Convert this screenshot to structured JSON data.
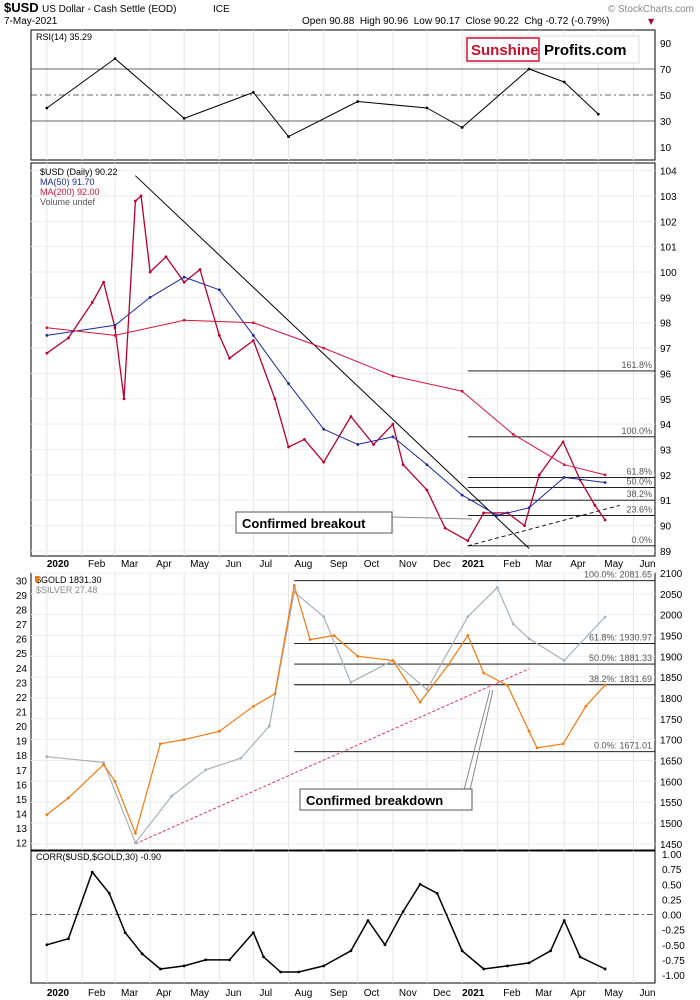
{
  "header": {
    "symbol": "$USD",
    "name": "US Dollar - Cash Settle (EOD)",
    "exchange": "ICE",
    "date": "7-May-2021",
    "watermark": "© StockCharts.com",
    "ohlc": "Open 90.88  High 90.96  Low 90.17  Close 90.22  Chg -0.72 (-0.79%)",
    "chg_marker": "▼"
  },
  "logo": {
    "part1": "Sunshine",
    "part2": "Profits.com",
    "red": "#c8102e"
  },
  "colors": {
    "usd": "#b8002e",
    "ma50": "#1a2a9a",
    "ma200": "#d2143c",
    "gold": "#f07a12",
    "silver": "#a8b0b8",
    "rsi": "#000000",
    "trendline": "#e0306a",
    "corr": "#000000"
  },
  "x_axis": {
    "labels": [
      "2020",
      "Feb",
      "Mar",
      "Apr",
      "May",
      "Jun",
      "Jul",
      "Aug",
      "Sep",
      "Oct",
      "Nov",
      "Dec",
      "2021",
      "Feb",
      "Mar",
      "Apr",
      "May",
      "Jun"
    ],
    "bold": [
      "2020",
      "2021"
    ]
  },
  "annotations": {
    "breakout": "Confirmed breakout",
    "breakdown": "Confirmed breakdown"
  },
  "chart_data": [
    {
      "type": "line",
      "panel": "rsi",
      "legend": "RSI(14) 35.29",
      "y_ticks": [
        10,
        30,
        50,
        70,
        90
      ],
      "ylim": [
        0,
        100
      ],
      "reference_lines": [
        30,
        50,
        70
      ],
      "x": [
        "2020-01",
        "2020-03",
        "2020-05",
        "2020-07",
        "2020-08",
        "2020-10",
        "2020-12",
        "2021-01",
        "2021-03",
        "2021-04",
        "2021-05"
      ],
      "values": [
        40,
        78,
        32,
        52,
        18,
        45,
        40,
        25,
        70,
        60,
        35.29
      ]
    },
    {
      "type": "line",
      "panel": "usd",
      "legend": [
        "$USD (Daily) 90.22",
        "MA(50) 91.70",
        "MA(200) 92.00",
        "Volume undef"
      ],
      "y_ticks": [
        89,
        90,
        91,
        92,
        93,
        94,
        95,
        96,
        97,
        98,
        99,
        100,
        101,
        102,
        103,
        104
      ],
      "ylim": [
        88.8,
        104.3
      ],
      "series": [
        {
          "name": "$USD (Daily)",
          "x": [
            "2020-01-01",
            "2020-01-20",
            "2020-02-10",
            "2020-02-20",
            "2020-03-01",
            "2020-03-09",
            "2020-03-19",
            "2020-03-24",
            "2020-04-01",
            "2020-04-15",
            "2020-05-01",
            "2020-05-15",
            "2020-06-01",
            "2020-06-10",
            "2020-07-01",
            "2020-07-20",
            "2020-08-01",
            "2020-08-15",
            "2020-09-01",
            "2020-09-25",
            "2020-10-15",
            "2020-11-01",
            "2020-11-10",
            "2020-12-01",
            "2020-12-17",
            "2021-01-06",
            "2021-01-20",
            "2021-02-10",
            "2021-02-25",
            "2021-03-10",
            "2021-03-31",
            "2021-04-15",
            "2021-04-28",
            "2021-05-07"
          ],
          "values": [
            96.8,
            97.4,
            98.8,
            99.6,
            97.8,
            95.0,
            102.8,
            103.0,
            100.0,
            100.6,
            99.6,
            100.1,
            97.5,
            96.6,
            97.3,
            95.0,
            93.1,
            93.4,
            92.5,
            94.3,
            93.2,
            94.0,
            92.4,
            91.4,
            89.9,
            89.4,
            90.5,
            90.5,
            90.0,
            92.0,
            93.3,
            91.8,
            90.8,
            90.22
          ]
        },
        {
          "name": "MA(50)",
          "x": [
            "2020-01-01",
            "2020-03-01",
            "2020-04-01",
            "2020-05-01",
            "2020-06-01",
            "2020-07-01",
            "2020-08-01",
            "2020-09-01",
            "2020-10-01",
            "2020-11-01",
            "2020-12-01",
            "2021-01-01",
            "2021-02-01",
            "2021-03-01",
            "2021-04-01",
            "2021-05-07"
          ],
          "values": [
            97.5,
            97.9,
            99.0,
            99.8,
            99.3,
            97.5,
            95.6,
            93.8,
            93.2,
            93.5,
            92.4,
            91.2,
            90.4,
            90.7,
            91.9,
            91.7
          ]
        },
        {
          "name": "MA(200)",
          "x": [
            "2020-01-01",
            "2020-03-01",
            "2020-05-01",
            "2020-07-01",
            "2020-09-01",
            "2020-11-01",
            "2021-01-01",
            "2021-02-15",
            "2021-04-01",
            "2021-05-07"
          ],
          "values": [
            97.8,
            97.5,
            98.1,
            98.0,
            97.0,
            95.9,
            95.3,
            93.6,
            92.4,
            92.0
          ]
        }
      ],
      "fibonacci": [
        {
          "label": "161.8%",
          "value": 96.1
        },
        {
          "label": "100.0%",
          "value": 93.5
        },
        {
          "label": "61.8%",
          "value": 91.9
        },
        {
          "label": "50.0%",
          "value": 91.5
        },
        {
          "label": "38.2%",
          "value": 91.0
        },
        {
          "label": "23.6%",
          "value": 90.4
        },
        {
          "label": "0.0%",
          "value": 89.2
        }
      ]
    },
    {
      "type": "line",
      "panel": "gold-silver",
      "legend": [
        "$GOLD 1831.30",
        "$SILVER 27.48"
      ],
      "y_left_ticks": [
        12,
        13,
        14,
        15,
        16,
        17,
        18,
        19,
        20,
        21,
        22,
        23,
        24,
        25,
        26,
        27,
        28,
        29,
        30
      ],
      "y_right_ticks": [
        1450,
        1500,
        1550,
        1600,
        1650,
        1700,
        1750,
        1800,
        1850,
        1900,
        1950,
        2000,
        2050,
        2100
      ],
      "ylim_right": [
        1435,
        2100
      ],
      "ylim_left": [
        11.5,
        30.5
      ],
      "series": [
        {
          "name": "$GOLD",
          "x": [
            "2020-01-01",
            "2020-01-20",
            "2020-02-20",
            "2020-03-01",
            "2020-03-19",
            "2020-04-10",
            "2020-05-01",
            "2020-06-01",
            "2020-07-01",
            "2020-07-20",
            "2020-08-06",
            "2020-08-20",
            "2020-09-10",
            "2020-10-01",
            "2020-11-01",
            "2020-11-25",
            "2020-12-20",
            "2021-01-06",
            "2021-01-20",
            "2021-02-10",
            "2021-03-01",
            "2021-03-08",
            "2021-03-31",
            "2021-04-20",
            "2021-05-07"
          ],
          "values": [
            1520,
            1560,
            1640,
            1600,
            1475,
            1690,
            1700,
            1720,
            1780,
            1810,
            2070,
            1940,
            1950,
            1900,
            1890,
            1790,
            1880,
            1950,
            1860,
            1830,
            1720,
            1680,
            1690,
            1780,
            1831.3
          ]
        },
        {
          "name": "$SILVER",
          "x": [
            "2020-01-01",
            "2020-02-20",
            "2020-03-19",
            "2020-04-20",
            "2020-05-20",
            "2020-06-20",
            "2020-07-15",
            "2020-08-06",
            "2020-09-01",
            "2020-09-25",
            "2020-11-01",
            "2020-12-01",
            "2021-01-06",
            "2021-02-01",
            "2021-02-15",
            "2021-03-01",
            "2021-04-01",
            "2021-05-07"
          ],
          "values": [
            17.9,
            17.5,
            12.0,
            15.2,
            17.0,
            17.8,
            20.0,
            29.2,
            27.5,
            23.0,
            24.5,
            22.5,
            27.5,
            29.5,
            27.0,
            26.0,
            24.5,
            27.48
          ]
        }
      ],
      "fibonacci": [
        {
          "label": "100.0%: 2081.65",
          "value": 2081.65
        },
        {
          "label": "61.8%: 1930.97",
          "value": 1930.97
        },
        {
          "label": "50.0%: 1881.33",
          "value": 1881.33
        },
        {
          "label": "38.2%: 1831.69",
          "value": 1831.69
        },
        {
          "label": "0.0%: 1671.01",
          "value": 1671.01
        }
      ]
    },
    {
      "type": "line",
      "panel": "corr",
      "legend": "CORR($USD,$GOLD,30) -0.90",
      "y_ticks": [
        "1.00",
        "0.75",
        "0.50",
        "0.25",
        "0.00",
        "-0.25",
        "-0.50",
        "-0.75",
        "-1.00"
      ],
      "ylim": [
        -1.0,
        1.0
      ],
      "reference_lines": [
        0
      ],
      "x": [
        "2020-01-01",
        "2020-01-20",
        "2020-02-10",
        "2020-02-25",
        "2020-03-10",
        "2020-03-25",
        "2020-04-10",
        "2020-05-01",
        "2020-05-20",
        "2020-06-10",
        "2020-07-01",
        "2020-07-10",
        "2020-07-25",
        "2020-08-10",
        "2020-09-01",
        "2020-09-25",
        "2020-10-10",
        "2020-10-25",
        "2020-11-10",
        "2020-11-25",
        "2020-12-10",
        "2021-01-01",
        "2021-01-20",
        "2021-02-10",
        "2021-03-01",
        "2021-03-20",
        "2021-04-01",
        "2021-04-15",
        "2021-05-07"
      ],
      "values": [
        -0.5,
        -0.4,
        0.7,
        0.35,
        -0.3,
        -0.65,
        -0.9,
        -0.85,
        -0.75,
        -0.75,
        -0.3,
        -0.7,
        -0.95,
        -0.95,
        -0.85,
        -0.6,
        -0.1,
        -0.5,
        0.05,
        0.5,
        0.35,
        -0.6,
        -0.9,
        -0.85,
        -0.8,
        -0.6,
        -0.1,
        -0.7,
        -0.9
      ]
    }
  ]
}
